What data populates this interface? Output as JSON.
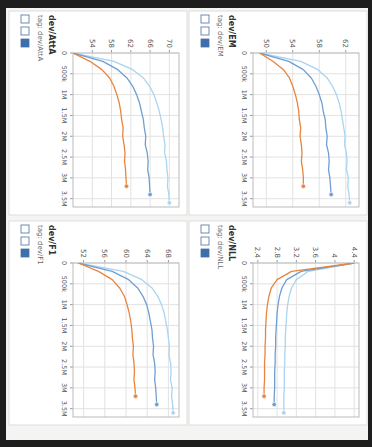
{
  "chart_data": [
    {
      "type": "line",
      "title": "dev/AttA",
      "subtitle": "tag: dev/AttA",
      "x": [
        0,
        200000,
        400000,
        600000,
        800000,
        1000000,
        1200000,
        1400000,
        1600000,
        1800000,
        2000000,
        2200000,
        2400000,
        2600000,
        2800000,
        3000000,
        3200000,
        3400000,
        3600000
      ],
      "xlim": [
        0,
        3700000
      ],
      "xticks": [
        0,
        {
          "value": 500000,
          "label": "500k"
        },
        {
          "value": 1000000,
          "label": "1M"
        },
        {
          "value": 1500000,
          "label": "1.5M"
        },
        {
          "value": 2000000,
          "label": "2M"
        },
        {
          "value": 2500000,
          "label": "2.5M"
        },
        {
          "value": 3000000,
          "label": "3M"
        },
        {
          "value": 3500000,
          "label": "3.5M"
        }
      ],
      "ylim": [
        50,
        72
      ],
      "yticks": [
        54,
        58,
        62,
        66,
        70
      ],
      "grid": true,
      "series": [
        {
          "color": "#a9d4f2",
          "values": [
            50,
            58.5,
            62.4,
            64.6,
            65.9,
            66.8,
            67.4,
            67.9,
            68.3,
            68.6,
            68.8,
            69.1,
            69.0,
            69.4,
            69.5,
            69.7,
            69.6,
            69.9,
            70.0
          ]
        },
        {
          "color": "#6f9fd0",
          "values": [
            50,
            56.2,
            59.3,
            61.2,
            62.4,
            63.2,
            63.8,
            64.2,
            64.6,
            64.8,
            65.1,
            65.0,
            65.4,
            65.6,
            65.5,
            65.8,
            65.9,
            66.0,
            null
          ]
        },
        {
          "color": "#e8843e",
          "values": [
            50,
            53.5,
            56.0,
            57.6,
            58.5,
            59.1,
            59.6,
            59.9,
            60.1,
            60.4,
            60.3,
            60.6,
            60.8,
            60.7,
            60.9,
            61.0,
            61.1,
            null,
            null
          ]
        }
      ]
    },
    {
      "type": "line",
      "title": "dev/EM",
      "subtitle": "tag: dev/EM",
      "x": [
        0,
        200000,
        400000,
        600000,
        800000,
        1000000,
        1200000,
        1400000,
        1600000,
        1800000,
        2000000,
        2200000,
        2400000,
        2600000,
        2800000,
        3000000,
        3200000,
        3400000,
        3600000
      ],
      "xlim": [
        0,
        3700000
      ],
      "xticks": [
        0,
        {
          "value": 500000,
          "label": "500k"
        },
        {
          "value": 1000000,
          "label": "1M"
        },
        {
          "value": 1500000,
          "label": "1.5M"
        },
        {
          "value": 2000000,
          "label": "2M"
        },
        {
          "value": 2500000,
          "label": "2.5M"
        },
        {
          "value": 3000000,
          "label": "3M"
        },
        {
          "value": 3500000,
          "label": "3.5M"
        }
      ],
      "ylim": [
        48,
        64
      ],
      "yticks": [
        50,
        54,
        58,
        62
      ],
      "grid": true,
      "series": [
        {
          "color": "#a9d4f2",
          "values": [
            49,
            55.2,
            57.8,
            59.2,
            60.0,
            60.6,
            61.0,
            61.3,
            61.5,
            61.7,
            61.9,
            61.8,
            62.1,
            62.2,
            62.1,
            62.4,
            62.3,
            62.5,
            62.6
          ]
        },
        {
          "color": "#6f9fd0",
          "values": [
            49,
            53.4,
            55.6,
            56.8,
            57.5,
            58.0,
            58.4,
            58.6,
            58.9,
            59.0,
            59.2,
            59.1,
            59.4,
            59.5,
            59.4,
            59.6,
            59.7,
            59.8,
            null
          ]
        },
        {
          "color": "#e8843e",
          "values": [
            49,
            51.0,
            52.6,
            53.5,
            54.0,
            54.4,
            54.7,
            54.9,
            55.0,
            55.2,
            55.1,
            55.3,
            55.4,
            55.3,
            55.5,
            55.6,
            55.6,
            null,
            null
          ]
        }
      ]
    },
    {
      "type": "line",
      "title": "dev/F1",
      "subtitle": "tag: dev/F1",
      "x": [
        0,
        200000,
        400000,
        600000,
        800000,
        1000000,
        1200000,
        1400000,
        1600000,
        1800000,
        2000000,
        2200000,
        2400000,
        2600000,
        2800000,
        3000000,
        3200000,
        3400000,
        3600000
      ],
      "xlim": [
        0,
        3700000
      ],
      "xticks": [
        0,
        {
          "value": 500000,
          "label": "500k"
        },
        {
          "value": 1000000,
          "label": "1M"
        },
        {
          "value": 1500000,
          "label": "1.5M"
        },
        {
          "value": 2000000,
          "label": "2M"
        },
        {
          "value": 2500000,
          "label": "2.5M"
        },
        {
          "value": 3000000,
          "label": "3M"
        },
        {
          "value": 3500000,
          "label": "3.5M"
        }
      ],
      "ylim": [
        50,
        70
      ],
      "yticks": [
        52,
        56,
        60,
        64,
        68
      ],
      "grid": true,
      "series": [
        {
          "color": "#a9d4f2",
          "values": [
            51,
            59.5,
            63.0,
            64.9,
            66.0,
            66.7,
            67.2,
            67.5,
            67.8,
            68.0,
            68.2,
            68.1,
            68.4,
            68.5,
            68.4,
            68.7,
            68.6,
            68.8,
            68.9
          ]
        },
        {
          "color": "#6f9fd0",
          "values": [
            51,
            57.4,
            60.5,
            62.2,
            63.2,
            63.9,
            64.3,
            64.6,
            64.9,
            65.0,
            65.2,
            65.1,
            65.4,
            65.5,
            65.4,
            65.6,
            65.7,
            65.8,
            null
          ]
        },
        {
          "color": "#e8843e",
          "values": [
            51,
            54.8,
            57.4,
            58.8,
            59.7,
            60.2,
            60.6,
            60.9,
            61.1,
            61.2,
            61.4,
            61.3,
            61.5,
            61.6,
            61.5,
            61.7,
            61.8,
            null,
            null
          ]
        }
      ]
    },
    {
      "type": "line",
      "title": "dev/NLL",
      "subtitle": "tag: dev/NLL",
      "x": [
        0,
        200000,
        400000,
        600000,
        800000,
        1000000,
        1200000,
        1400000,
        1600000,
        1800000,
        2000000,
        2200000,
        2400000,
        2600000,
        2800000,
        3000000,
        3200000,
        3400000,
        3600000
      ],
      "xlim": [
        0,
        3700000
      ],
      "xticks": [
        0,
        {
          "value": 500000,
          "label": "500k"
        },
        {
          "value": 1000000,
          "label": "1M"
        },
        {
          "value": 1500000,
          "label": "1.5M"
        },
        {
          "value": 2000000,
          "label": "2M"
        },
        {
          "value": 2500000,
          "label": "2.5M"
        },
        {
          "value": 3000000,
          "label": "3M"
        },
        {
          "value": 3500000,
          "label": "3.5M"
        }
      ],
      "ylim": [
        2.3,
        4.5
      ],
      "yticks": [
        2.4,
        2.8,
        3.2,
        3.6,
        4,
        4.4
      ],
      "grid": true,
      "series": [
        {
          "color": "#a9d4f2",
          "values": [
            4.4,
            3.45,
            3.2,
            3.1,
            3.05,
            3.02,
            3.0,
            2.99,
            2.98,
            2.97,
            2.97,
            2.96,
            2.96,
            2.95,
            2.95,
            2.95,
            2.94,
            2.94,
            2.94
          ]
        },
        {
          "color": "#6f9fd0",
          "values": [
            4.4,
            3.3,
            3.0,
            2.9,
            2.85,
            2.82,
            2.8,
            2.79,
            2.78,
            2.77,
            2.77,
            2.76,
            2.76,
            2.75,
            2.75,
            2.75,
            2.74,
            2.74,
            null
          ]
        },
        {
          "color": "#e8843e",
          "values": [
            4.4,
            3.1,
            2.8,
            2.68,
            2.63,
            2.6,
            2.58,
            2.57,
            2.56,
            2.56,
            2.55,
            2.55,
            2.54,
            2.54,
            2.54,
            2.53,
            2.53,
            null,
            null
          ]
        }
      ]
    }
  ]
}
